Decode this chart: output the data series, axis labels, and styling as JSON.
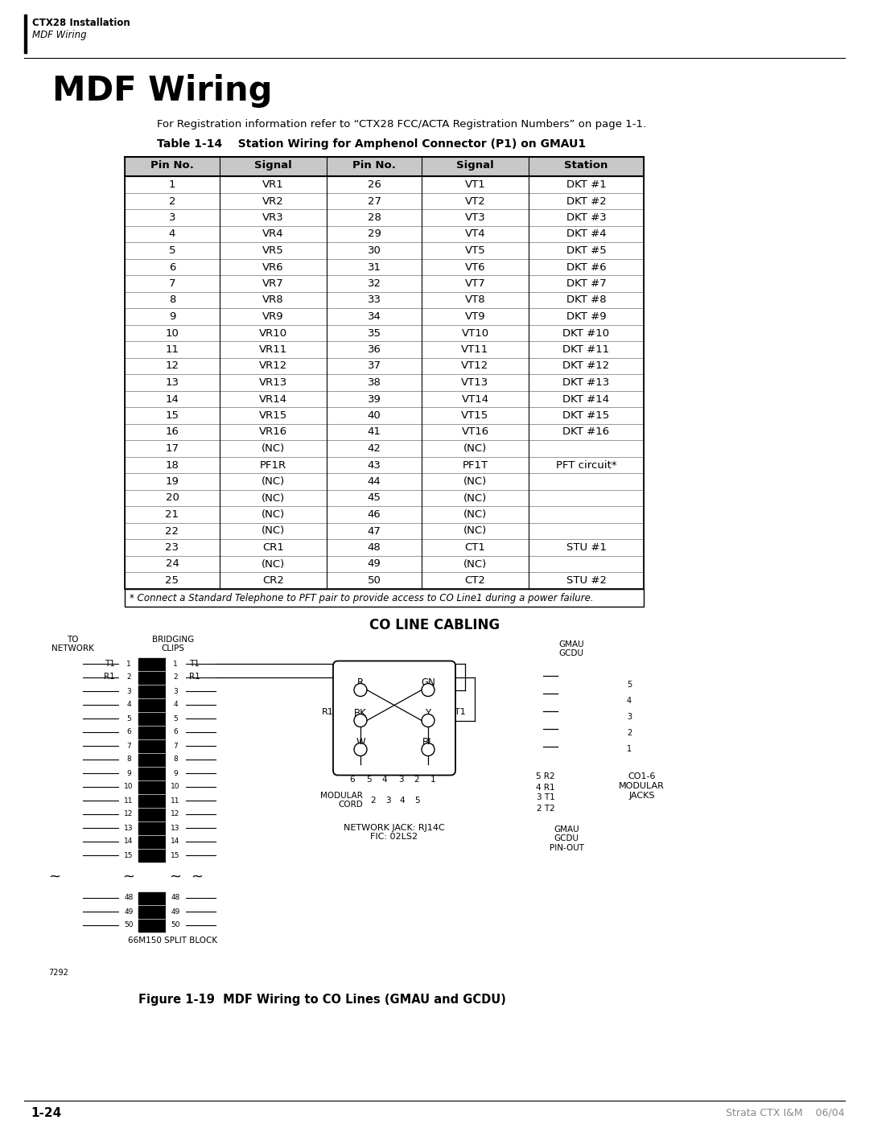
{
  "page_title": "MDF Wiring",
  "header_title": "CTX28 Installation",
  "header_subtitle": "MDF Wiring",
  "subtitle": "For Registration information refer to “CTX28 FCC/ACTA Registration Numbers” on page 1-1.",
  "table_title": "Table 1-14    Station Wiring for Amphenol Connector (P1) on GMAU1",
  "table_headers": [
    "Pin No.",
    "Signal",
    "Pin No.",
    "Signal",
    "Station"
  ],
  "table_rows": [
    [
      "1",
      "VR1",
      "26",
      "VT1",
      "DKT #1"
    ],
    [
      "2",
      "VR2",
      "27",
      "VT2",
      "DKT #2"
    ],
    [
      "3",
      "VR3",
      "28",
      "VT3",
      "DKT #3"
    ],
    [
      "4",
      "VR4",
      "29",
      "VT4",
      "DKT #4"
    ],
    [
      "5",
      "VR5",
      "30",
      "VT5",
      "DKT #5"
    ],
    [
      "6",
      "VR6",
      "31",
      "VT6",
      "DKT #6"
    ],
    [
      "7",
      "VR7",
      "32",
      "VT7",
      "DKT #7"
    ],
    [
      "8",
      "VR8",
      "33",
      "VT8",
      "DKT #8"
    ],
    [
      "9",
      "VR9",
      "34",
      "VT9",
      "DKT #9"
    ],
    [
      "10",
      "VR10",
      "35",
      "VT10",
      "DKT #10"
    ],
    [
      "11",
      "VR11",
      "36",
      "VT11",
      "DKT #11"
    ],
    [
      "12",
      "VR12",
      "37",
      "VT12",
      "DKT #12"
    ],
    [
      "13",
      "VR13",
      "38",
      "VT13",
      "DKT #13"
    ],
    [
      "14",
      "VR14",
      "39",
      "VT14",
      "DKT #14"
    ],
    [
      "15",
      "VR15",
      "40",
      "VT15",
      "DKT #15"
    ],
    [
      "16",
      "VR16",
      "41",
      "VT16",
      "DKT #16"
    ],
    [
      "17",
      "(NC)",
      "42",
      "(NC)",
      ""
    ],
    [
      "18",
      "PF1R",
      "43",
      "PF1T",
      "PFT circuit*"
    ],
    [
      "19",
      "(NC)",
      "44",
      "(NC)",
      ""
    ],
    [
      "20",
      "(NC)",
      "45",
      "(NC)",
      ""
    ],
    [
      "21",
      "(NC)",
      "46",
      "(NC)",
      ""
    ],
    [
      "22",
      "(NC)",
      "47",
      "(NC)",
      ""
    ],
    [
      "23",
      "CR1",
      "48",
      "CT1",
      "STU #1"
    ],
    [
      "24",
      "(NC)",
      "49",
      "(NC)",
      ""
    ],
    [
      "25",
      "CR2",
      "50",
      "CT2",
      "STU #2"
    ]
  ],
  "table_footnote": "* Connect a Standard Telephone to PFT pair to provide access to CO Line1 during a power failure.",
  "diagram_title": "CO LINE CABLING",
  "figure_caption": "Figure 1-19  MDF Wiring to CO Lines (GMAU and GCDU)",
  "page_number": "1-24",
  "footer_right": "Strata CTX I&M    06/04",
  "bg_color": "#ffffff",
  "table_header_bg": "#cccccc",
  "table_border_color": "#000000"
}
